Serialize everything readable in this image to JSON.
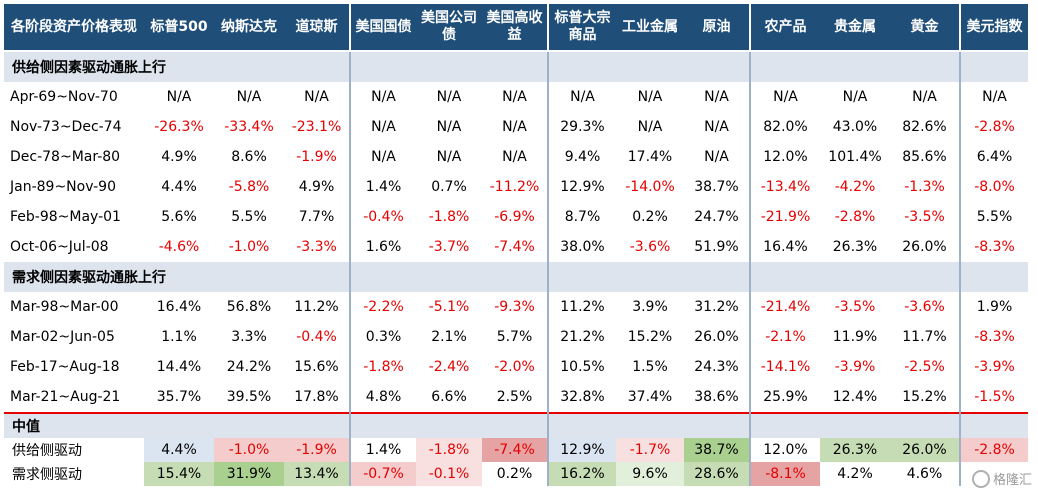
{
  "colors": {
    "header_bg": "#1f4e79",
    "section_bg": "#dde4ee",
    "negative_text": "#e60000",
    "median_positive_shades": [
      "#dbe5f1",
      "#c6dcb5",
      "#a9d08e",
      "#e2efda"
    ],
    "median_negative_shades": [
      "#f4cccc",
      "#e6a3a3",
      "#f8e0e0"
    ]
  },
  "header": {
    "corner": "各阶段资产价格表现",
    "columns": [
      "标普500",
      "纳斯达克",
      "道琼斯",
      "美国国债",
      "美国公司债",
      "美国高收益",
      "标普大宗商品",
      "工业金属",
      "原油",
      "农产品",
      "贵金属",
      "黄金",
      "美元指数"
    ]
  },
  "sections": [
    {
      "title": "供给侧因素驱动通胀上行",
      "rows": [
        {
          "period": "Apr-69~Nov-70",
          "values": [
            "N/A",
            "N/A",
            "N/A",
            "N/A",
            "N/A",
            "N/A",
            "N/A",
            "N/A",
            "N/A",
            "N/A",
            "N/A",
            "N/A",
            "N/A"
          ]
        },
        {
          "period": "Nov-73~Dec-74",
          "values": [
            "-26.3%",
            "-33.4%",
            "-23.1%",
            "N/A",
            "N/A",
            "N/A",
            "29.3%",
            "N/A",
            "N/A",
            "82.0%",
            "43.0%",
            "82.6%",
            "-2.8%"
          ]
        },
        {
          "period": "Dec-78~Mar-80",
          "values": [
            "4.9%",
            "8.6%",
            "-1.9%",
            "N/A",
            "N/A",
            "N/A",
            "9.4%",
            "17.4%",
            "N/A",
            "12.0%",
            "101.4%",
            "85.6%",
            "6.4%"
          ]
        },
        {
          "period": "Jan-89~Nov-90",
          "values": [
            "4.4%",
            "-5.8%",
            "4.9%",
            "1.4%",
            "0.7%",
            "-11.2%",
            "12.9%",
            "-14.0%",
            "38.7%",
            "-13.4%",
            "-4.2%",
            "-1.3%",
            "-8.0%"
          ]
        },
        {
          "period": "Feb-98~May-01",
          "values": [
            "5.6%",
            "5.5%",
            "7.7%",
            "-0.4%",
            "-1.8%",
            "-6.9%",
            "8.7%",
            "0.2%",
            "24.7%",
            "-21.9%",
            "-2.8%",
            "-3.5%",
            "5.5%"
          ]
        },
        {
          "period": "Oct-06~Jul-08",
          "values": [
            "-4.6%",
            "-1.0%",
            "-3.3%",
            "1.6%",
            "-3.7%",
            "-7.4%",
            "38.0%",
            "-3.6%",
            "51.9%",
            "16.4%",
            "26.3%",
            "26.0%",
            "-8.3%"
          ]
        }
      ]
    },
    {
      "title": "需求侧因素驱动通胀上行",
      "rows": [
        {
          "period": "Mar-98~Mar-00",
          "values": [
            "16.4%",
            "56.8%",
            "11.2%",
            "-2.2%",
            "-5.1%",
            "-9.3%",
            "11.2%",
            "3.9%",
            "31.2%",
            "-21.4%",
            "-3.5%",
            "-3.6%",
            "1.9%"
          ]
        },
        {
          "period": "Mar-02~Jun-05",
          "values": [
            "1.1%",
            "3.3%",
            "-0.4%",
            "0.3%",
            "2.1%",
            "5.7%",
            "21.2%",
            "15.2%",
            "26.0%",
            "-2.1%",
            "11.9%",
            "11.7%",
            "-8.3%"
          ]
        },
        {
          "period": "Feb-17~Aug-18",
          "values": [
            "14.4%",
            "24.2%",
            "15.6%",
            "-1.8%",
            "-2.4%",
            "-2.0%",
            "10.5%",
            "1.5%",
            "24.3%",
            "-14.1%",
            "-3.9%",
            "-2.5%",
            "-3.9%"
          ]
        },
        {
          "period": "Mar-21~Aug-21",
          "values": [
            "35.7%",
            "39.5%",
            "17.8%",
            "4.8%",
            "6.6%",
            "2.5%",
            "32.8%",
            "37.4%",
            "38.6%",
            "25.9%",
            "12.4%",
            "15.2%",
            "-1.5%"
          ]
        }
      ]
    }
  ],
  "median": {
    "title": "中值",
    "rows": [
      {
        "label": "供给侧驱动",
        "values": [
          "4.4%",
          "-1.0%",
          "-1.9%",
          "1.4%",
          "-1.8%",
          "-7.4%",
          "12.9%",
          "-1.7%",
          "38.7%",
          "12.0%",
          "26.3%",
          "26.0%",
          "-2.8%"
        ],
        "shades": [
          "#dbe5f1",
          "#f4cccc",
          "#f4cccc",
          "#ffffff",
          "#f8e0e0",
          "#e6a3a3",
          "#dbe5f1",
          "#f8e0e0",
          "#a9d08e",
          "#ffffff",
          "#c6dcb5",
          "#c6dcb5",
          "#f4cccc"
        ]
      },
      {
        "label": "需求侧驱动",
        "values": [
          "15.4%",
          "31.9%",
          "13.4%",
          "-0.7%",
          "-0.1%",
          "0.2%",
          "16.2%",
          "9.6%",
          "28.6%",
          "-8.1%",
          "4.2%",
          "4.6%",
          ""
        ],
        "shades": [
          "#c6dcb5",
          "#a9d08e",
          "#c6dcb5",
          "#f4cccc",
          "#f8e0e0",
          "#ffffff",
          "#c6dcb5",
          "#e2efda",
          "#c6dcb5",
          "#e6a3a3",
          "#ffffff",
          "#ffffff",
          "#ffffff"
        ]
      }
    ]
  },
  "watermark": {
    "text": "格隆汇"
  }
}
